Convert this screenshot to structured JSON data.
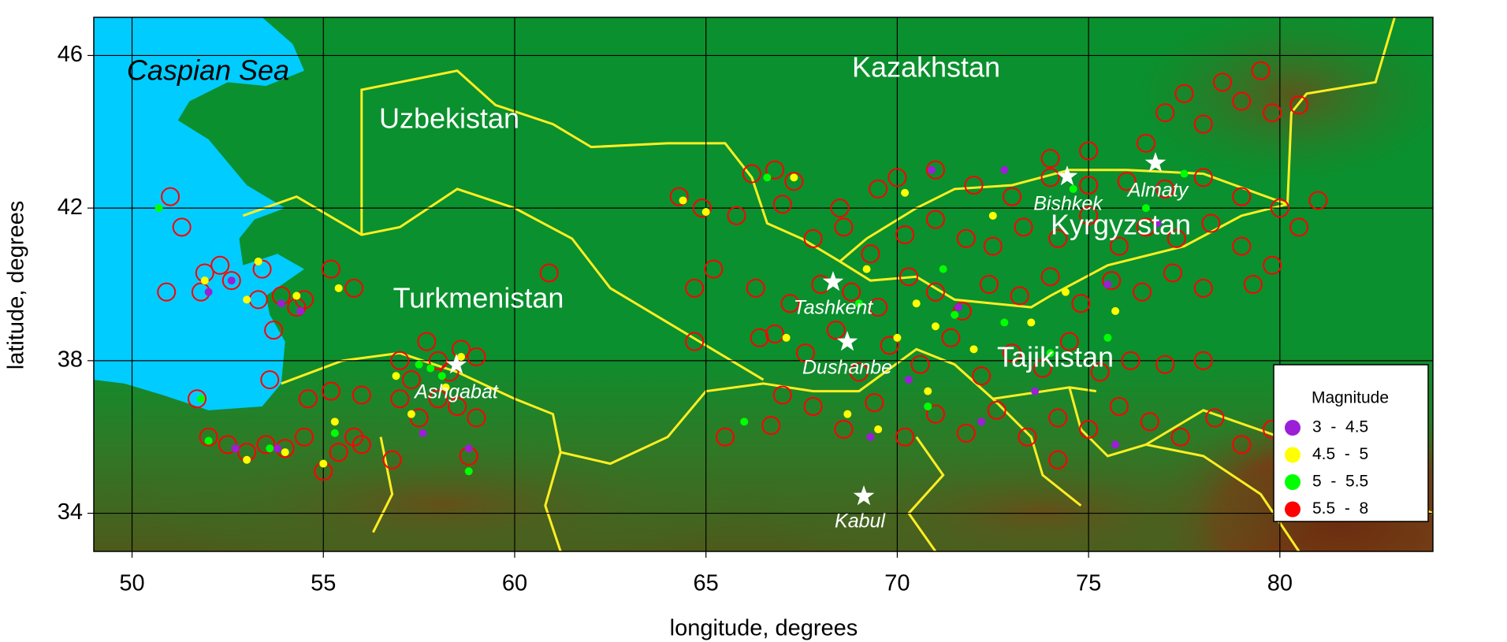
{
  "chart_data": {
    "type": "scatter",
    "xlabel": "longitude, degrees",
    "ylabel": "latitude, degrees",
    "xlim": [
      49,
      84
    ],
    "ylim": [
      33,
      47
    ],
    "xticks": [
      50,
      55,
      60,
      65,
      70,
      75,
      80
    ],
    "yticks": [
      34,
      38,
      42,
      46
    ],
    "grid": true,
    "legend_title": "Magnitude",
    "legend_position": "lower right",
    "places": {
      "sea": "Caspian Sea",
      "countries": [
        "Kazakhstan",
        "Uzbekistan",
        "Turkmenistan",
        "Kyrgyzstan",
        "Tajikistan"
      ],
      "cities": [
        "Bishkek",
        "Almaty",
        "Tashkent",
        "Dushanbe",
        "Ashgabat",
        "Kabul"
      ]
    },
    "series": [
      {
        "name": "5.5  -  8",
        "color": "#ff0000",
        "hollow": true,
        "x": [
          51.0,
          51.3,
          51.9,
          52.3,
          51.8,
          50.9,
          52.6,
          53.4,
          53.3,
          53.9,
          54.3,
          53.7,
          54.5,
          55.2,
          55.8,
          51.7,
          53.6,
          52.0,
          52.5,
          53.0,
          53.5,
          54.0,
          54.5,
          55.0,
          55.4,
          55.8,
          56.0,
          55.2,
          54.6,
          56.8,
          56.0,
          57.0,
          57.3,
          57.7,
          58.0,
          58.3,
          58.6,
          59.0,
          58.0,
          57.5,
          58.8,
          59.0,
          57.0,
          58.5,
          60.9,
          64.3,
          64.9,
          65.2,
          64.7,
          64.7,
          65.8,
          66.2,
          66.8,
          67.3,
          67.0,
          66.4,
          66.3,
          65.5,
          66.7,
          67.0,
          77.5,
          78.5,
          79.5,
          79.0,
          78.0,
          79.8,
          80.5,
          77.0,
          76.5,
          75.0,
          74.0,
          68.5,
          69.5,
          70.0,
          71.0,
          72.0,
          73.0,
          74.0,
          75.0,
          76.0,
          77.0,
          78.0,
          79.0,
          80.0,
          81.0,
          80.5,
          67.8,
          68.6,
          69.3,
          70.2,
          71.0,
          71.8,
          72.5,
          73.3,
          74.2,
          75.0,
          75.8,
          76.5,
          77.3,
          78.2,
          79.0,
          79.8,
          67.2,
          68.0,
          68.8,
          69.5,
          70.3,
          71.0,
          71.7,
          72.4,
          73.2,
          74.0,
          74.8,
          75.6,
          76.4,
          77.2,
          78.0,
          79.3,
          66.8,
          67.6,
          68.4,
          69.0,
          69.8,
          70.6,
          71.4,
          72.2,
          73.0,
          73.8,
          74.5,
          75.3,
          76.1,
          77.0,
          78.0,
          67.8,
          68.6,
          69.4,
          70.2,
          71.0,
          71.8,
          72.6,
          73.4,
          74.2,
          75.0,
          75.8,
          76.6,
          77.4,
          78.3,
          79.0,
          79.8,
          74.2
        ],
        "values": [
          42.3,
          41.5,
          40.3,
          40.5,
          39.8,
          39.8,
          40.1,
          40.4,
          39.6,
          39.7,
          39.4,
          38.8,
          39.6,
          40.4,
          39.9,
          37.0,
          37.5,
          36.0,
          35.8,
          35.6,
          35.8,
          35.7,
          36.0,
          35.1,
          35.6,
          36.0,
          35.8,
          37.2,
          37.0,
          35.4,
          37.1,
          38.0,
          37.5,
          38.5,
          38.0,
          37.7,
          38.3,
          38.1,
          37.0,
          36.5,
          35.5,
          36.5,
          37.0,
          36.8,
          40.3,
          42.3,
          42.0,
          40.4,
          39.9,
          38.5,
          41.8,
          42.9,
          43.0,
          42.7,
          42.1,
          38.6,
          39.9,
          36.0,
          36.3,
          37.1,
          45.0,
          45.3,
          45.6,
          44.8,
          44.2,
          44.5,
          44.7,
          44.5,
          43.7,
          43.5,
          43.3,
          42.0,
          42.5,
          42.8,
          43.0,
          42.6,
          42.3,
          42.8,
          42.6,
          42.7,
          42.5,
          42.8,
          42.3,
          42.0,
          42.2,
          41.5,
          41.2,
          41.5,
          40.8,
          41.3,
          41.7,
          41.2,
          41.0,
          41.5,
          41.2,
          41.8,
          41.0,
          41.5,
          41.2,
          41.6,
          41.0,
          40.5,
          39.5,
          40.0,
          39.8,
          39.4,
          40.2,
          39.8,
          39.3,
          40.0,
          39.7,
          40.2,
          39.5,
          40.1,
          39.8,
          40.3,
          39.9,
          40.0,
          38.7,
          38.2,
          38.8,
          37.7,
          38.4,
          37.9,
          38.6,
          37.6,
          38.2,
          37.8,
          38.5,
          37.7,
          38.0,
          37.9,
          38.0,
          36.8,
          36.2,
          36.9,
          36.0,
          36.6,
          36.1,
          36.7,
          36.0,
          36.5,
          36.2,
          36.8,
          36.4,
          36.0,
          36.5,
          35.8,
          36.2,
          35.4
        ]
      },
      {
        "name": "5  -  5.5",
        "color": "#00ff00",
        "x": [
          50.7,
          53.3,
          51.8,
          53.6,
          52.0,
          57.5,
          57.8,
          58.1,
          55.3,
          58.8,
          66.6,
          66.0,
          69.0,
          71.5,
          72.8,
          74.0,
          75.5,
          74.6,
          76.5,
          77.5,
          71.2,
          70.8
        ],
        "values": [
          42.0,
          40.6,
          37.0,
          35.7,
          35.9,
          37.9,
          37.8,
          37.6,
          36.1,
          35.1,
          42.8,
          36.4,
          39.5,
          39.2,
          39.0,
          38.2,
          38.6,
          42.5,
          42.0,
          42.9,
          40.4,
          36.8
        ]
      },
      {
        "name": "4.5  -  5",
        "color": "#ffff00",
        "x": [
          51.9,
          53.3,
          53.0,
          54.3,
          55.4,
          53.0,
          54.0,
          55.0,
          55.3,
          56.9,
          58.2,
          57.3,
          58.6,
          64.4,
          65.0,
          67.3,
          67.1,
          69.2,
          70.0,
          70.5,
          71.0,
          72.0,
          72.5,
          73.5,
          74.4,
          75.7,
          69.5,
          70.8,
          70.2,
          68.7
        ],
        "values": [
          40.1,
          40.6,
          39.6,
          39.7,
          39.9,
          35.4,
          35.6,
          35.3,
          36.4,
          37.6,
          37.3,
          36.6,
          38.1,
          42.2,
          41.9,
          42.8,
          38.6,
          40.4,
          38.6,
          39.5,
          38.9,
          38.3,
          41.8,
          39.0,
          39.8,
          39.3,
          36.2,
          37.2,
          42.4,
          36.6
        ]
      },
      {
        "name": "3  -  4.5",
        "color": "#9b1fd6",
        "x": [
          52.0,
          52.6,
          53.9,
          54.4,
          52.7,
          53.8,
          57.6,
          58.8,
          70.9,
          72.8,
          71.6,
          72.2,
          70.3,
          69.3,
          75.7,
          75.5,
          76.8,
          73.6
        ],
        "values": [
          39.8,
          40.1,
          39.5,
          39.3,
          35.7,
          35.7,
          36.1,
          35.7,
          43.0,
          43.0,
          39.4,
          36.4,
          37.5,
          36.0,
          35.8,
          40.0,
          41.6,
          37.2
        ]
      }
    ]
  }
}
